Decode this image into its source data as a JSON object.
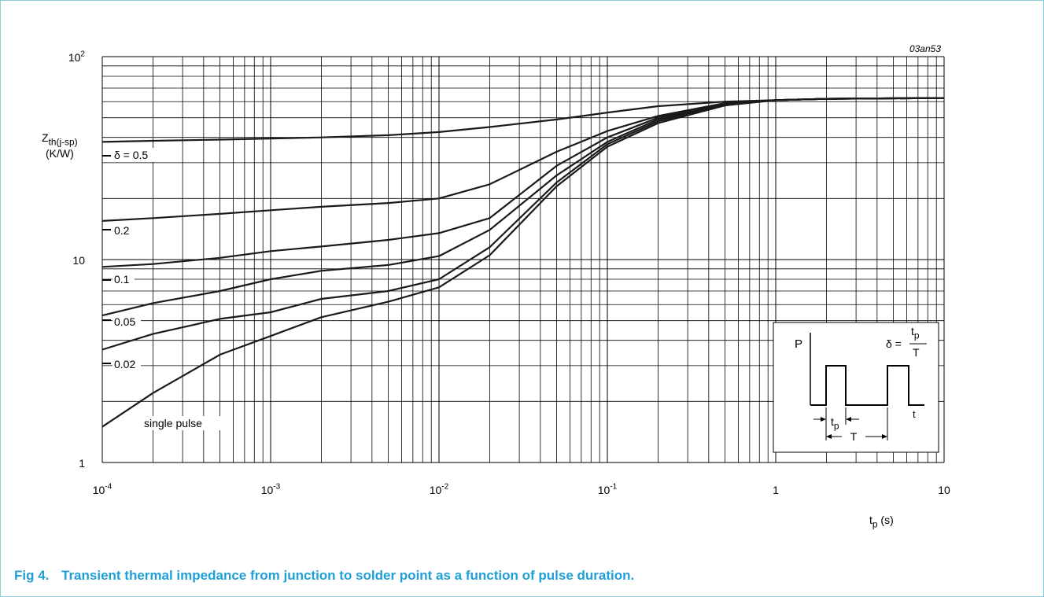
{
  "chart_data": {
    "type": "line",
    "figure_id": "03an53",
    "x_scale": "log",
    "y_scale": "log",
    "xlim": [
      0.0001,
      10
    ],
    "ylim": [
      1,
      100
    ],
    "x_ticks": [
      0.0001,
      0.001,
      0.01,
      0.1,
      1,
      10
    ],
    "x_tick_labels": [
      {
        "base": "10",
        "exp": "-4"
      },
      {
        "base": "10",
        "exp": "-3"
      },
      {
        "base": "10",
        "exp": "-2"
      },
      {
        "base": "10",
        "exp": "-1"
      },
      {
        "base": "1",
        "exp": ""
      },
      {
        "base": "10",
        "exp": ""
      }
    ],
    "y_ticks": [
      1,
      10,
      100
    ],
    "y_tick_labels": [
      {
        "base": "1",
        "exp": ""
      },
      {
        "base": "10",
        "exp": ""
      },
      {
        "base": "10",
        "exp": "2"
      }
    ],
    "xlabel": {
      "main": "t",
      "sub": "p",
      "unit": " (s)"
    },
    "ylabel": {
      "main": "Z",
      "sub": "th(j-sp)",
      "unit": "(K/W)"
    },
    "grid": true,
    "series": [
      {
        "name": "δ = 0.5",
        "x": [
          0.0001,
          0.0002,
          0.0005,
          0.001,
          0.002,
          0.005,
          0.01,
          0.02,
          0.05,
          0.1,
          0.2,
          0.5,
          1,
          2,
          5,
          10
        ],
        "y": [
          38,
          38.5,
          39,
          39.5,
          40,
          41,
          42.5,
          45,
          49,
          53,
          57,
          60,
          61,
          62,
          62.3,
          62.5
        ]
      },
      {
        "name": "0.2",
        "x": [
          0.0001,
          0.0002,
          0.0005,
          0.001,
          0.002,
          0.005,
          0.01,
          0.02,
          0.05,
          0.1,
          0.2,
          0.5,
          1,
          2,
          5,
          10
        ],
        "y": [
          15.5,
          16,
          16.8,
          17.5,
          18.2,
          19,
          20,
          23.5,
          34,
          43,
          51,
          59,
          61,
          62,
          62.3,
          62.5
        ]
      },
      {
        "name": "0.1",
        "x": [
          0.0001,
          0.0002,
          0.0005,
          0.001,
          0.002,
          0.005,
          0.01,
          0.02,
          0.05,
          0.1,
          0.2,
          0.5,
          1,
          2,
          5,
          10
        ],
        "y": [
          9.2,
          9.5,
          10.2,
          11,
          11.6,
          12.5,
          13.5,
          16,
          29,
          40,
          50,
          59,
          61,
          62,
          62.3,
          62.5
        ]
      },
      {
        "name": "0.05",
        "x": [
          0.0001,
          0.0002,
          0.0005,
          0.001,
          0.002,
          0.005,
          0.01,
          0.02,
          0.05,
          0.1,
          0.2,
          0.5,
          1,
          2,
          5,
          10
        ],
        "y": [
          5.3,
          6.1,
          7,
          8,
          8.8,
          9.4,
          10.4,
          14,
          26,
          38,
          49,
          58.5,
          61,
          62,
          62.3,
          62.5
        ]
      },
      {
        "name": "0.02",
        "x": [
          0.0001,
          0.0002,
          0.0005,
          0.001,
          0.002,
          0.005,
          0.01,
          0.02,
          0.05,
          0.1,
          0.2,
          0.5,
          1,
          2,
          5,
          10
        ],
        "y": [
          3.6,
          4.3,
          5.1,
          5.5,
          6.4,
          7,
          8,
          11.5,
          24,
          37,
          48,
          58,
          61,
          62,
          62.3,
          62.5
        ]
      },
      {
        "name": "single pulse",
        "x": [
          0.0001,
          0.0002,
          0.0005,
          0.001,
          0.002,
          0.005,
          0.01,
          0.02,
          0.05,
          0.1,
          0.2,
          0.5,
          1,
          2,
          5,
          10
        ],
        "y": [
          1.5,
          2.2,
          3.4,
          4.2,
          5.2,
          6.2,
          7.3,
          10.5,
          23,
          36,
          47,
          57.5,
          61,
          62,
          62.3,
          62.5
        ]
      }
    ],
    "curve_labels": [
      "δ = 0.5",
      "0.2",
      "0.1",
      "0.05",
      "0.02",
      "single pulse"
    ],
    "inset": {
      "p_label": "P",
      "t_label": "t",
      "formula": {
        "lhs": "δ =",
        "num_main": "t",
        "num_sub": "p",
        "den": "T"
      },
      "tp_label": {
        "main": "t",
        "sub": "p"
      },
      "period_label": "T"
    }
  },
  "caption": {
    "fig_number": "Fig 4.",
    "text": "Transient thermal impedance from junction to solder point as a function of pulse duration."
  }
}
